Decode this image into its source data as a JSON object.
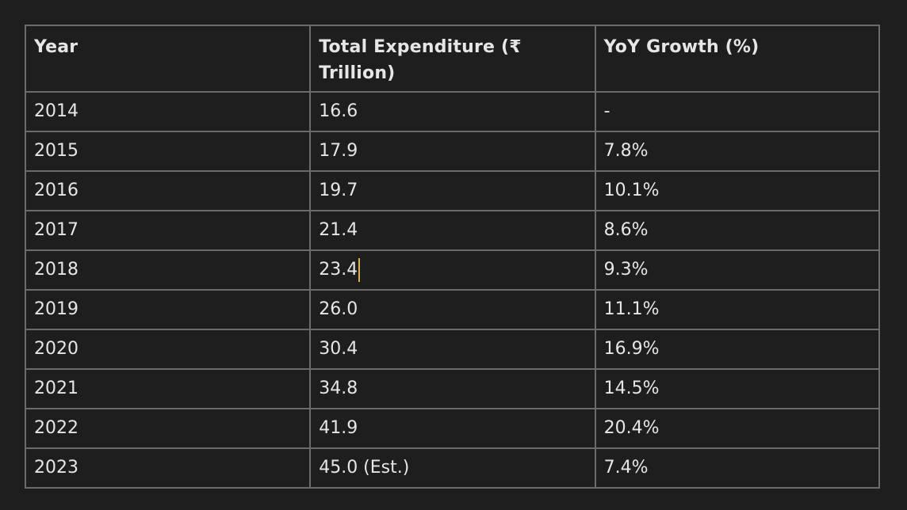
{
  "table": {
    "headers": [
      "Year",
      "Total Expenditure (₹ Trillion)",
      "YoY Growth (%)"
    ],
    "rows": [
      [
        "2014",
        "16.6",
        "-"
      ],
      [
        "2015",
        "17.9",
        "7.8%"
      ],
      [
        "2016",
        "19.7",
        "10.1%"
      ],
      [
        "2017",
        "21.4",
        "8.6%"
      ],
      [
        "2018",
        "23.4",
        "9.3%"
      ],
      [
        "2019",
        "26.0",
        "11.1%"
      ],
      [
        "2020",
        "30.4",
        "16.9%"
      ],
      [
        "2021",
        "34.8",
        "14.5%"
      ],
      [
        "2022",
        "41.9",
        "20.4%"
      ],
      [
        "2023",
        "45.0 (Est.)",
        "7.4%"
      ]
    ]
  },
  "caret_color": "#e0b050"
}
